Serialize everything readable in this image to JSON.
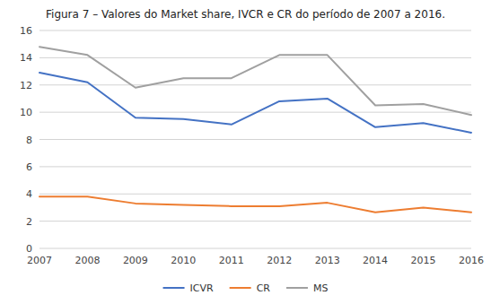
{
  "chart_data": {
    "type": "line",
    "title": "Figura 7 – Valores do Market share, IVCR e CR do período de 2007 a 2016.",
    "x": [
      2007,
      2008,
      2009,
      2010,
      2011,
      2012,
      2013,
      2014,
      2015,
      2016
    ],
    "xlim": [
      2007,
      2016
    ],
    "xticks": [
      2007,
      2008,
      2009,
      2010,
      2011,
      2012,
      2013,
      2014,
      2015,
      2016
    ],
    "series": [
      {
        "name": "ICVR",
        "color": "#4472C4",
        "values": [
          12.9,
          12.2,
          9.6,
          9.5,
          9.1,
          10.8,
          11.0,
          8.9,
          9.2,
          8.5
        ]
      },
      {
        "name": "CR",
        "color": "#ED7D31",
        "values": [
          3.8,
          3.8,
          3.3,
          3.2,
          3.1,
          3.1,
          3.35,
          2.65,
          3.0,
          2.65
        ]
      },
      {
        "name": "MS",
        "color": "#A0A0A0",
        "values": [
          14.8,
          14.2,
          11.8,
          12.5,
          12.5,
          14.2,
          14.2,
          10.5,
          10.6,
          9.8
        ]
      }
    ],
    "ylim": [
      0,
      16
    ],
    "yticks": [
      0,
      2,
      4,
      6,
      8,
      10,
      12,
      14,
      16
    ],
    "grid": "y",
    "legend": "bottom"
  }
}
